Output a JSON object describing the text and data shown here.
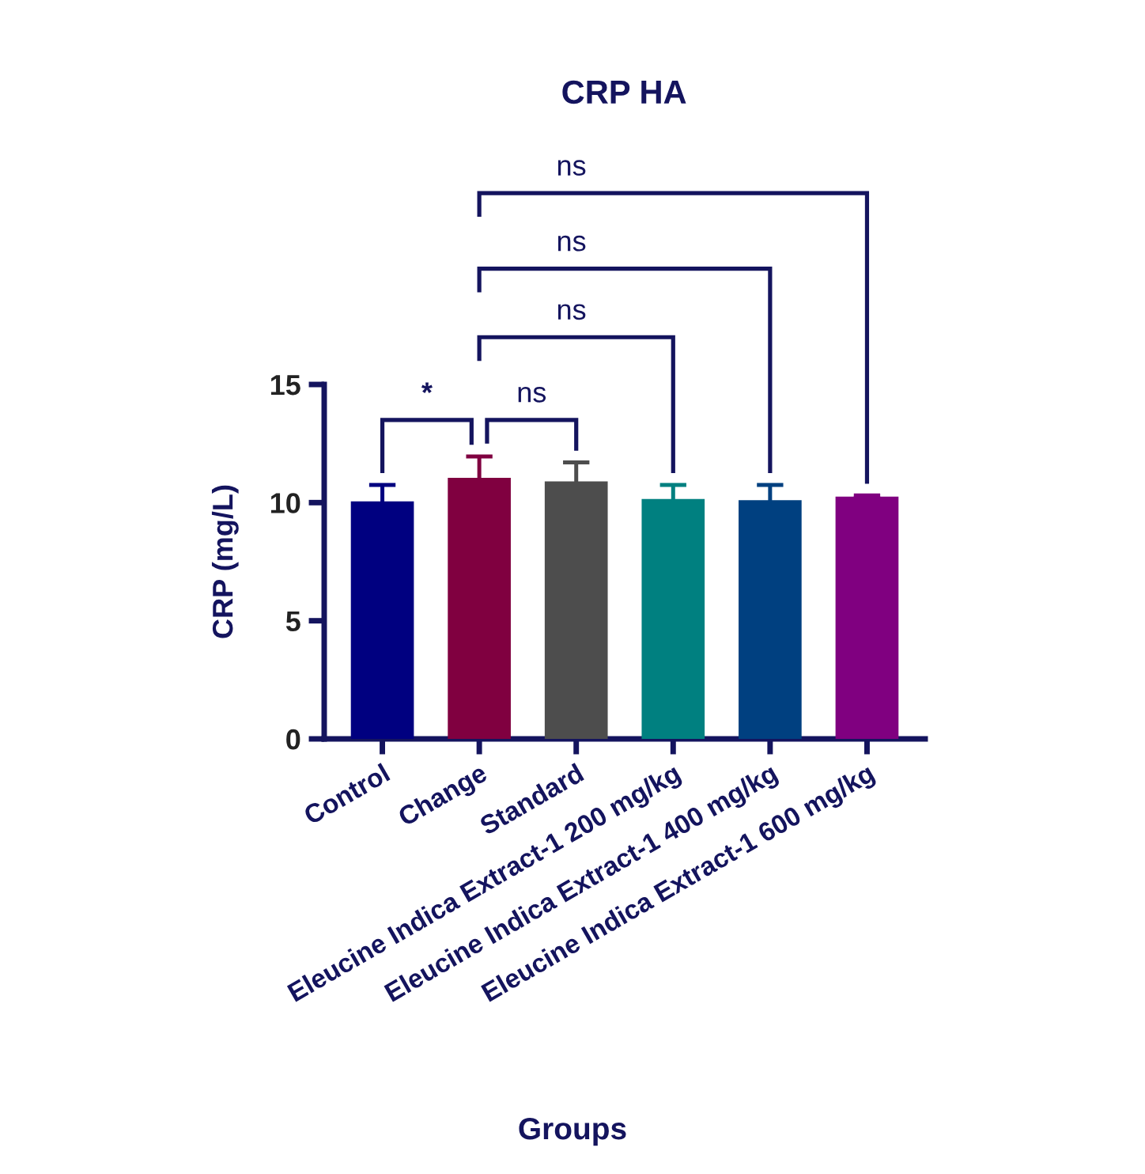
{
  "chart_data": {
    "type": "bar",
    "title": "CRP HA",
    "xlabel": "Groups",
    "ylabel": "CRP (mg/L)",
    "categories": [
      "Control",
      "Change",
      "Standard",
      "Eleucine Indica Extract-1 200 mg/kg",
      "Eleucine Indica Extract-1 400 mg/kg",
      "Eleucine Indica Extract-1 600 mg/kg"
    ],
    "values": [
      10.05,
      11.05,
      10.9,
      10.15,
      10.1,
      10.25
    ],
    "errors": [
      0.7,
      0.9,
      0.8,
      0.6,
      0.65,
      0.05
    ],
    "colors": [
      "#000080",
      "#800040",
      "#4d4d4d",
      "#008080",
      "#004080",
      "#800080"
    ],
    "ylim": [
      0,
      15
    ],
    "yticks": [
      0,
      5,
      10,
      15
    ],
    "annotations": [
      "*",
      "ns",
      "ns",
      "ns",
      "ns"
    ]
  }
}
